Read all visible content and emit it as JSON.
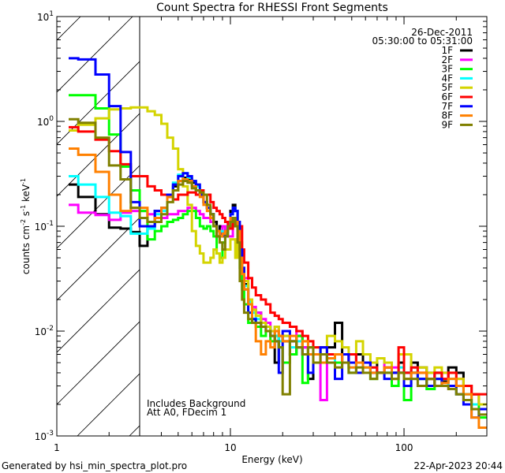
{
  "chart_data": {
    "type": "line",
    "title": "Count Spectra for RHESSI Front Segments",
    "date": "26-Dec-2011",
    "time_range": "05:30:00 to 05:31:00",
    "xlabel": "Energy (keV)",
    "ylabel": {
      "base": "counts cm",
      "exp1": "-2",
      "mid": " s",
      "exp2": "-1",
      "mid2": " keV",
      "exp3": "-1"
    },
    "xscale": "log",
    "yscale": "log",
    "xlim": [
      1,
      300
    ],
    "ylim": [
      0.001,
      10
    ],
    "x_ticks": [
      {
        "value": 1,
        "label": "1"
      },
      {
        "value": 10,
        "label": "10"
      },
      {
        "value": 100,
        "label": "100"
      }
    ],
    "y_ticks": [
      {
        "value": 0.001,
        "base": "10",
        "exp": "-3"
      },
      {
        "value": 0.01,
        "base": "10",
        "exp": "-2"
      },
      {
        "value": 0.1,
        "base": "10",
        "exp": "-1"
      },
      {
        "value": 1,
        "base": "10",
        "exp": "0"
      },
      {
        "value": 10,
        "base": "10",
        "exp": "1"
      }
    ],
    "hatched_region_keV": [
      1,
      3
    ],
    "annotations": [
      "Includes Background",
      "Att A0, FDecim 1"
    ],
    "legend_position": "top-right",
    "energy_edges_keV": [
      1.17,
      1.33,
      1.67,
      2.0,
      2.33,
      2.67,
      3.0,
      3.33,
      3.67,
      4.0,
      4.33,
      4.67,
      5.0,
      5.33,
      5.67,
      6.0,
      6.33,
      6.67,
      7.0,
      7.33,
      7.67,
      8.0,
      8.33,
      8.67,
      9.0,
      9.33,
      9.67,
      10.0,
      10.33,
      10.67,
      11.0,
      11.33,
      11.67,
      12.0,
      12.67,
      13.33,
      14,
      15,
      16,
      17,
      18,
      19,
      20,
      22,
      24,
      26,
      28,
      30,
      33,
      36,
      40,
      44,
      48,
      53,
      58,
      64,
      70,
      77,
      85,
      93,
      100,
      110,
      120,
      135,
      150,
      165,
      180,
      200,
      220,
      245,
      270,
      300
    ],
    "series": [
      {
        "name": "1F",
        "color": "#000000",
        "values": [
          0.25,
          0.19,
          0.13,
          0.097,
          0.095,
          0.088,
          0.065,
          0.1,
          0.14,
          0.15,
          0.2,
          0.24,
          0.27,
          0.29,
          0.28,
          0.26,
          0.22,
          0.2,
          0.17,
          0.15,
          0.13,
          0.11,
          0.09,
          0.1,
          0.085,
          0.09,
          0.1,
          0.14,
          0.16,
          0.14,
          0.1,
          0.06,
          0.04,
          0.028,
          0.02,
          0.016,
          0.015,
          0.012,
          0.011,
          0.01,
          0.005,
          0.009,
          0.008,
          0.006,
          0.009,
          0.007,
          0.0035,
          0.006,
          0.007,
          0.007,
          0.012,
          0.006,
          0.005,
          0.006,
          0.005,
          0.005,
          0.004,
          0.0045,
          0.004,
          0.005,
          0.004,
          0.005,
          0.0045,
          0.0035,
          0.004,
          0.0033,
          0.0045,
          0.004,
          0.003,
          0.0025,
          0.002
        ]
      },
      {
        "name": "2F",
        "color": "#ff00ff",
        "values": [
          0.16,
          0.135,
          0.128,
          0.115,
          0.135,
          0.14,
          0.14,
          0.13,
          0.12,
          0.12,
          0.13,
          0.13,
          0.14,
          0.14,
          0.15,
          0.15,
          0.14,
          0.13,
          0.12,
          0.12,
          0.11,
          0.1,
          0.09,
          0.09,
          0.1,
          0.09,
          0.08,
          0.08,
          0.1,
          0.11,
          0.09,
          0.05,
          0.03,
          0.032,
          0.02,
          0.017,
          0.015,
          0.013,
          0.012,
          0.01,
          0.011,
          0.009,
          0.009,
          0.008,
          0.01,
          0.007,
          0.007,
          0.006,
          0.0022,
          0.006,
          0.006,
          0.005,
          0.006,
          0.005,
          0.005,
          0.0045,
          0.004,
          0.005,
          0.0045,
          0.004,
          0.004,
          0.0045,
          0.0035,
          0.004,
          0.0035,
          0.004,
          0.003,
          0.0035,
          0.003,
          0.0025,
          0.002
        ]
      },
      {
        "name": "3F",
        "color": "#00ff00",
        "values": [
          1.78,
          1.78,
          1.33,
          0.75,
          0.37,
          0.22,
          0.14,
          0.075,
          0.09,
          0.1,
          0.11,
          0.115,
          0.12,
          0.13,
          0.14,
          0.14,
          0.12,
          0.1,
          0.095,
          0.1,
          0.09,
          0.08,
          0.055,
          0.05,
          0.07,
          0.085,
          0.1,
          0.11,
          0.11,
          0.1,
          0.08,
          0.04,
          0.025,
          0.018,
          0.012,
          0.013,
          0.011,
          0.009,
          0.01,
          0.008,
          0.009,
          0.007,
          0.005,
          0.006,
          0.009,
          0.0032,
          0.007,
          0.006,
          0.006,
          0.005,
          0.005,
          0.005,
          0.004,
          0.005,
          0.0045,
          0.0035,
          0.004,
          0.004,
          0.003,
          0.004,
          0.0022,
          0.004,
          0.0035,
          0.0028,
          0.0035,
          0.003,
          0.003,
          0.0025,
          0.0025,
          0.002,
          0.0015
        ]
      },
      {
        "name": "4F",
        "color": "#00ffff",
        "values": [
          0.3,
          0.25,
          0.19,
          0.135,
          0.125,
          0.085,
          0.085,
          0.095,
          0.13,
          0.14,
          0.2,
          0.26,
          0.31,
          0.32,
          0.29,
          0.27,
          0.24,
          0.2,
          0.17,
          0.15,
          0.13,
          0.1,
          0.09,
          0.09,
          0.08,
          0.09,
          0.11,
          0.13,
          0.15,
          0.14,
          0.1,
          0.06,
          0.04,
          0.027,
          0.019,
          0.015,
          0.013,
          0.012,
          0.011,
          0.01,
          0.009,
          0.008,
          0.009,
          0.007,
          0.008,
          0.006,
          0.006,
          0.006,
          0.007,
          0.005,
          0.006,
          0.005,
          0.0045,
          0.005,
          0.0045,
          0.0045,
          0.004,
          0.004,
          0.004,
          0.0045,
          0.004,
          0.0045,
          0.0035,
          0.004,
          0.0035,
          0.003,
          0.0035,
          0.003,
          0.0025,
          0.002,
          0.002
        ]
      },
      {
        "name": "5F",
        "color": "#d4d400",
        "values": [
          0.82,
          0.93,
          1.07,
          1.3,
          1.33,
          1.36,
          1.36,
          1.25,
          1.15,
          0.95,
          0.7,
          0.55,
          0.35,
          0.24,
          0.16,
          0.09,
          0.065,
          0.055,
          0.045,
          0.045,
          0.05,
          0.06,
          0.055,
          0.045,
          0.05,
          0.06,
          0.06,
          0.075,
          0.075,
          0.05,
          0.09,
          0.07,
          0.04,
          0.03,
          0.02,
          0.016,
          0.014,
          0.012,
          0.011,
          0.01,
          0.011,
          0.009,
          0.009,
          0.008,
          0.007,
          0.008,
          0.008,
          0.007,
          0.006,
          0.009,
          0.008,
          0.007,
          0.006,
          0.008,
          0.006,
          0.005,
          0.0055,
          0.005,
          0.004,
          0.006,
          0.006,
          0.004,
          0.0045,
          0.004,
          0.0045,
          0.004,
          0.004,
          0.0035,
          0.003,
          0.0025,
          0.002
        ]
      },
      {
        "name": "6F",
        "color": "#ff0000",
        "values": [
          0.88,
          0.8,
          0.67,
          0.52,
          0.39,
          0.3,
          0.3,
          0.24,
          0.22,
          0.2,
          0.19,
          0.18,
          0.2,
          0.2,
          0.21,
          0.21,
          0.2,
          0.22,
          0.2,
          0.2,
          0.17,
          0.15,
          0.14,
          0.13,
          0.12,
          0.11,
          0.1,
          0.095,
          0.12,
          0.11,
          0.1,
          0.1,
          0.06,
          0.045,
          0.032,
          0.026,
          0.022,
          0.02,
          0.018,
          0.015,
          0.014,
          0.013,
          0.012,
          0.011,
          0.01,
          0.009,
          0.008,
          0.007,
          0.007,
          0.006,
          0.006,
          0.005,
          0.006,
          0.005,
          0.005,
          0.0045,
          0.004,
          0.0045,
          0.004,
          0.007,
          0.004,
          0.0045,
          0.004,
          0.0035,
          0.004,
          0.0035,
          0.004,
          0.003,
          0.003,
          0.0025,
          0.0025
        ]
      },
      {
        "name": "7F",
        "color": "#0000ff",
        "values": [
          4.0,
          3.9,
          2.8,
          1.4,
          0.51,
          0.17,
          0.1,
          0.1,
          0.14,
          0.15,
          0.2,
          0.25,
          0.3,
          0.32,
          0.3,
          0.27,
          0.25,
          0.2,
          0.17,
          0.15,
          0.13,
          0.1,
          0.08,
          0.085,
          0.08,
          0.09,
          0.1,
          0.13,
          0.15,
          0.14,
          0.11,
          0.06,
          0.04,
          0.025,
          0.015,
          0.013,
          0.012,
          0.011,
          0.01,
          0.009,
          0.008,
          0.004,
          0.01,
          0.008,
          0.007,
          0.006,
          0.004,
          0.006,
          0.007,
          0.005,
          0.0035,
          0.006,
          0.005,
          0.004,
          0.005,
          0.004,
          0.004,
          0.0035,
          0.004,
          0.004,
          0.003,
          0.004,
          0.0035,
          0.003,
          0.0035,
          0.003,
          0.003,
          0.0025,
          0.002,
          0.0015,
          0.0018
        ]
      },
      {
        "name": "8F",
        "color": "#ff8000",
        "values": [
          0.55,
          0.48,
          0.33,
          0.2,
          0.14,
          0.15,
          0.15,
          0.11,
          0.12,
          0.15,
          0.19,
          0.22,
          0.27,
          0.28,
          0.27,
          0.24,
          0.22,
          0.19,
          0.16,
          0.14,
          0.12,
          0.1,
          0.09,
          0.08,
          0.085,
          0.09,
          0.1,
          0.12,
          0.12,
          0.11,
          0.09,
          0.05,
          0.035,
          0.025,
          0.018,
          0.012,
          0.008,
          0.006,
          0.008,
          0.007,
          0.01,
          0.009,
          0.008,
          0.009,
          0.007,
          0.008,
          0.006,
          0.006,
          0.005,
          0.0055,
          0.006,
          0.005,
          0.0045,
          0.005,
          0.0045,
          0.004,
          0.004,
          0.0045,
          0.0035,
          0.004,
          0.0035,
          0.004,
          0.004,
          0.0035,
          0.003,
          0.0032,
          0.0035,
          0.003,
          0.0025,
          0.0015,
          0.0012
        ]
      },
      {
        "name": "9F",
        "color": "#808000",
        "values": [
          1.05,
          0.97,
          0.7,
          0.38,
          0.28,
          0.15,
          0.12,
          0.11,
          0.11,
          0.13,
          0.17,
          0.22,
          0.25,
          0.27,
          0.26,
          0.23,
          0.22,
          0.21,
          0.2,
          0.16,
          0.13,
          0.1,
          0.08,
          0.07,
          0.06,
          0.08,
          0.1,
          0.11,
          0.12,
          0.1,
          0.07,
          0.03,
          0.02,
          0.015,
          0.013,
          0.012,
          0.012,
          0.011,
          0.01,
          0.009,
          0.008,
          0.007,
          0.0025,
          0.008,
          0.007,
          0.006,
          0.007,
          0.005,
          0.006,
          0.005,
          0.0045,
          0.005,
          0.004,
          0.0045,
          0.004,
          0.0035,
          0.004,
          0.004,
          0.0035,
          0.004,
          0.0035,
          0.0035,
          0.003,
          0.0035,
          0.003,
          0.003,
          0.0028,
          0.0025,
          0.0022,
          0.0018,
          0.0016
        ]
      }
    ]
  },
  "footer": {
    "generated_by": "Generated by hsi_min_spectra_plot.pro",
    "timestamp": "22-Apr-2023 20:44"
  }
}
